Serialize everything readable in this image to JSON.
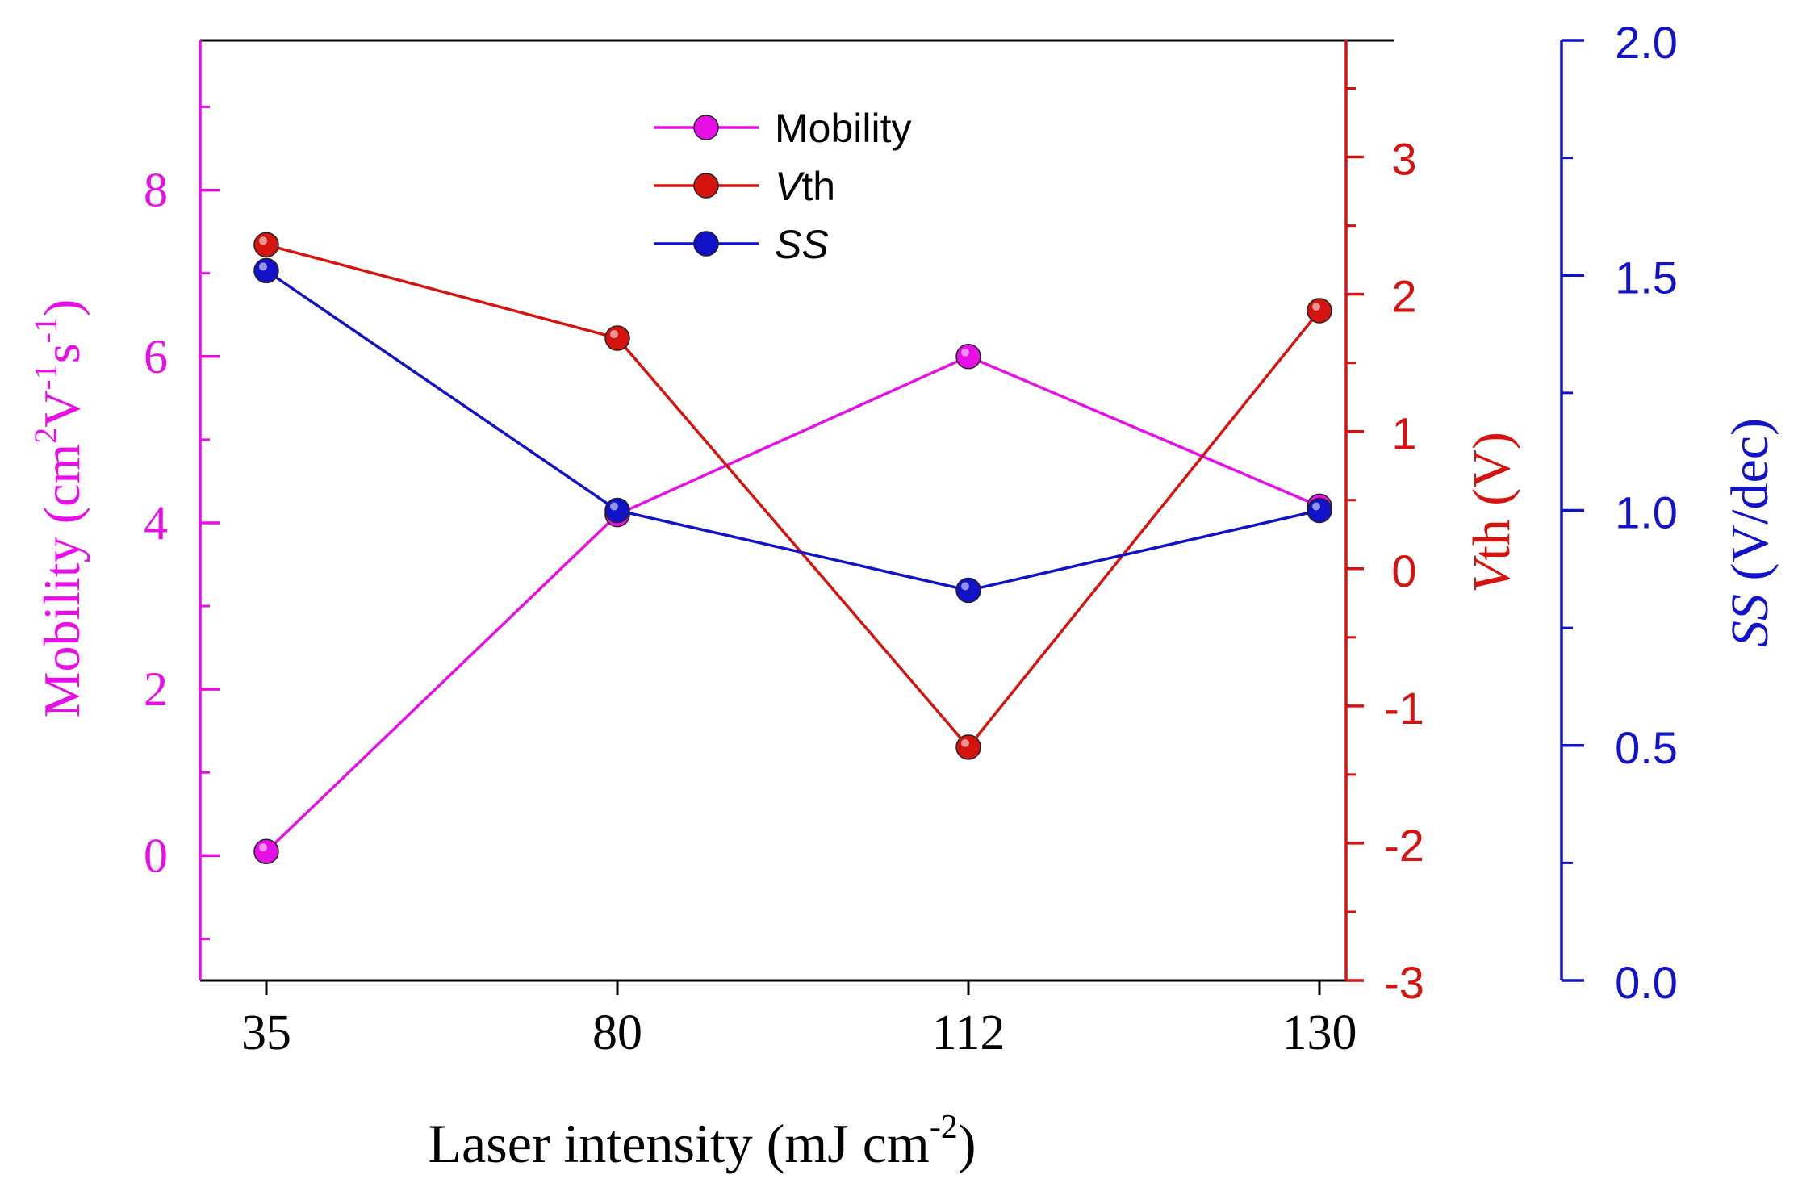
{
  "chart_data": {
    "type": "line",
    "categories": [
      "35",
      "80",
      "112",
      "130"
    ],
    "xlabel": "Laser intensity (mJ cm",
    "xlabel_sup": "-2",
    "xlabel_end": ")",
    "axes": {
      "mobility": {
        "label_parts": [
          "Mobility (cm",
          "2",
          "V",
          "-1",
          "s",
          "-1",
          ")"
        ],
        "ylim": [
          -1.5,
          9.8
        ],
        "ticks": [
          0,
          2,
          4,
          6,
          8
        ],
        "color": "#e60fe6"
      },
      "vth": {
        "label_italic": "V",
        "label_rest": "th (V)",
        "ylim": [
          -3,
          3.85
        ],
        "ticks": [
          -3,
          -2,
          -1,
          0,
          1,
          2,
          3
        ],
        "color": "#d5140f"
      },
      "ss": {
        "label_italic": "SS",
        "label_rest": " (V/dec)",
        "ylim": [
          0,
          2
        ],
        "ticks": [
          "0.0",
          "0.5",
          "1.0",
          "1.5",
          "2.0"
        ],
        "color": "#1212c8"
      }
    },
    "series": [
      {
        "name": "Mobility",
        "axis": "mobility",
        "values": [
          0.05,
          4.1,
          6.0,
          4.2
        ],
        "color": "#e60fe6"
      },
      {
        "name": "Vth",
        "name_italic": "V",
        "name_rest": "th",
        "axis": "vth",
        "values": [
          2.36,
          1.68,
          -1.3,
          1.88
        ],
        "color": "#d5140f"
      },
      {
        "name": "SS",
        "axis": "ss",
        "values": [
          1.51,
          1.0,
          0.83,
          1.0
        ],
        "color": "#1212c8"
      }
    ],
    "legend": {
      "position": "top-center"
    },
    "grid": false
  }
}
